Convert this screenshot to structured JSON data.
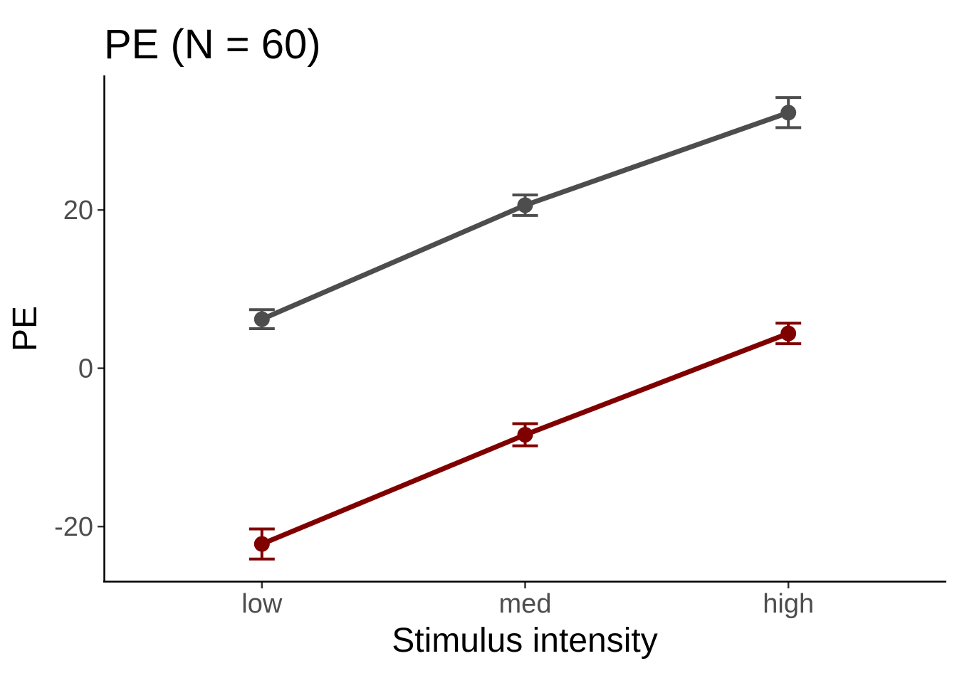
{
  "chart_data": {
    "type": "line",
    "title": "PE (N = 60)",
    "xlabel": "Stimulus intensity",
    "ylabel": "PE",
    "categories": [
      "low",
      "med",
      "high"
    ],
    "yticks": [
      -20,
      0,
      20
    ],
    "ytick_labels": [
      "-20",
      "0",
      "20"
    ],
    "ylim": [
      -27,
      37
    ],
    "grid": false,
    "legend": "none",
    "series": [
      {
        "color": "#4d4d4d",
        "values": [
          6.2,
          20.6,
          32.3
        ],
        "error_low": [
          5.0,
          19.3,
          30.4
        ],
        "error_high": [
          7.4,
          21.9,
          34.2
        ]
      },
      {
        "color": "#800000",
        "values": [
          -22.2,
          -8.4,
          4.4
        ],
        "error_low": [
          -24.1,
          -9.8,
          3.1
        ],
        "error_high": [
          -20.3,
          -7.0,
          5.7
        ]
      }
    ]
  }
}
